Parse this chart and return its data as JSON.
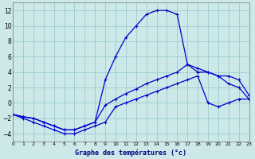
{
  "title": "Graphe des températures (°c)",
  "background_color": "#cce8e8",
  "grid_color": "#99cccc",
  "line_color": "#0000cc",
  "xlim": [
    0,
    23
  ],
  "ylim": [
    -5,
    13
  ],
  "yticks": [
    -4,
    -2,
    0,
    2,
    4,
    6,
    8,
    10,
    12
  ],
  "xticks": [
    0,
    1,
    2,
    3,
    4,
    5,
    6,
    7,
    8,
    9,
    10,
    11,
    12,
    13,
    14,
    15,
    16,
    17,
    18,
    19,
    20,
    21,
    22,
    23
  ],
  "line1_x": [
    0,
    1,
    2,
    3,
    4,
    5,
    6,
    7,
    8,
    9,
    10,
    11,
    12,
    13,
    14,
    15,
    16,
    17,
    18,
    19,
    20,
    21,
    22,
    23
  ],
  "line1_y": [
    -1.5,
    -1.8,
    -2.0,
    -2.5,
    -3.0,
    -3.5,
    -3.5,
    -3.0,
    -2.5,
    3.0,
    6.0,
    8.5,
    10.0,
    11.5,
    12.0,
    12.0,
    11.5,
    5.0,
    4.0,
    4.0,
    3.5,
    2.5,
    2.0,
    0.5
  ],
  "line2_x": [
    0,
    1,
    2,
    3,
    4,
    5,
    6,
    7,
    8,
    9,
    10,
    11,
    12,
    13,
    14,
    15,
    16,
    17,
    18,
    19,
    20,
    21,
    22,
    23
  ],
  "line2_y": [
    -1.5,
    -1.8,
    -2.0,
    -2.5,
    -3.0,
    -3.5,
    -3.5,
    -3.0,
    -2.5,
    -0.3,
    0.5,
    1.2,
    1.8,
    2.5,
    3.0,
    3.5,
    4.0,
    5.0,
    4.5,
    4.0,
    3.5,
    3.5,
    3.0,
    1.0
  ],
  "line3_x": [
    0,
    1,
    2,
    3,
    4,
    5,
    6,
    7,
    8,
    9,
    10,
    11,
    12,
    13,
    14,
    15,
    16,
    17,
    18,
    19,
    20,
    21,
    22,
    23
  ],
  "line3_y": [
    -1.5,
    -2.0,
    -2.5,
    -3.0,
    -3.5,
    -4.0,
    -4.0,
    -3.5,
    -3.0,
    -2.5,
    -0.5,
    0.0,
    0.5,
    1.0,
    1.5,
    2.0,
    2.5,
    3.0,
    3.5,
    0.0,
    -0.5,
    0.0,
    0.5,
    0.5
  ],
  "figsize": [
    3.2,
    2.0
  ],
  "dpi": 100
}
